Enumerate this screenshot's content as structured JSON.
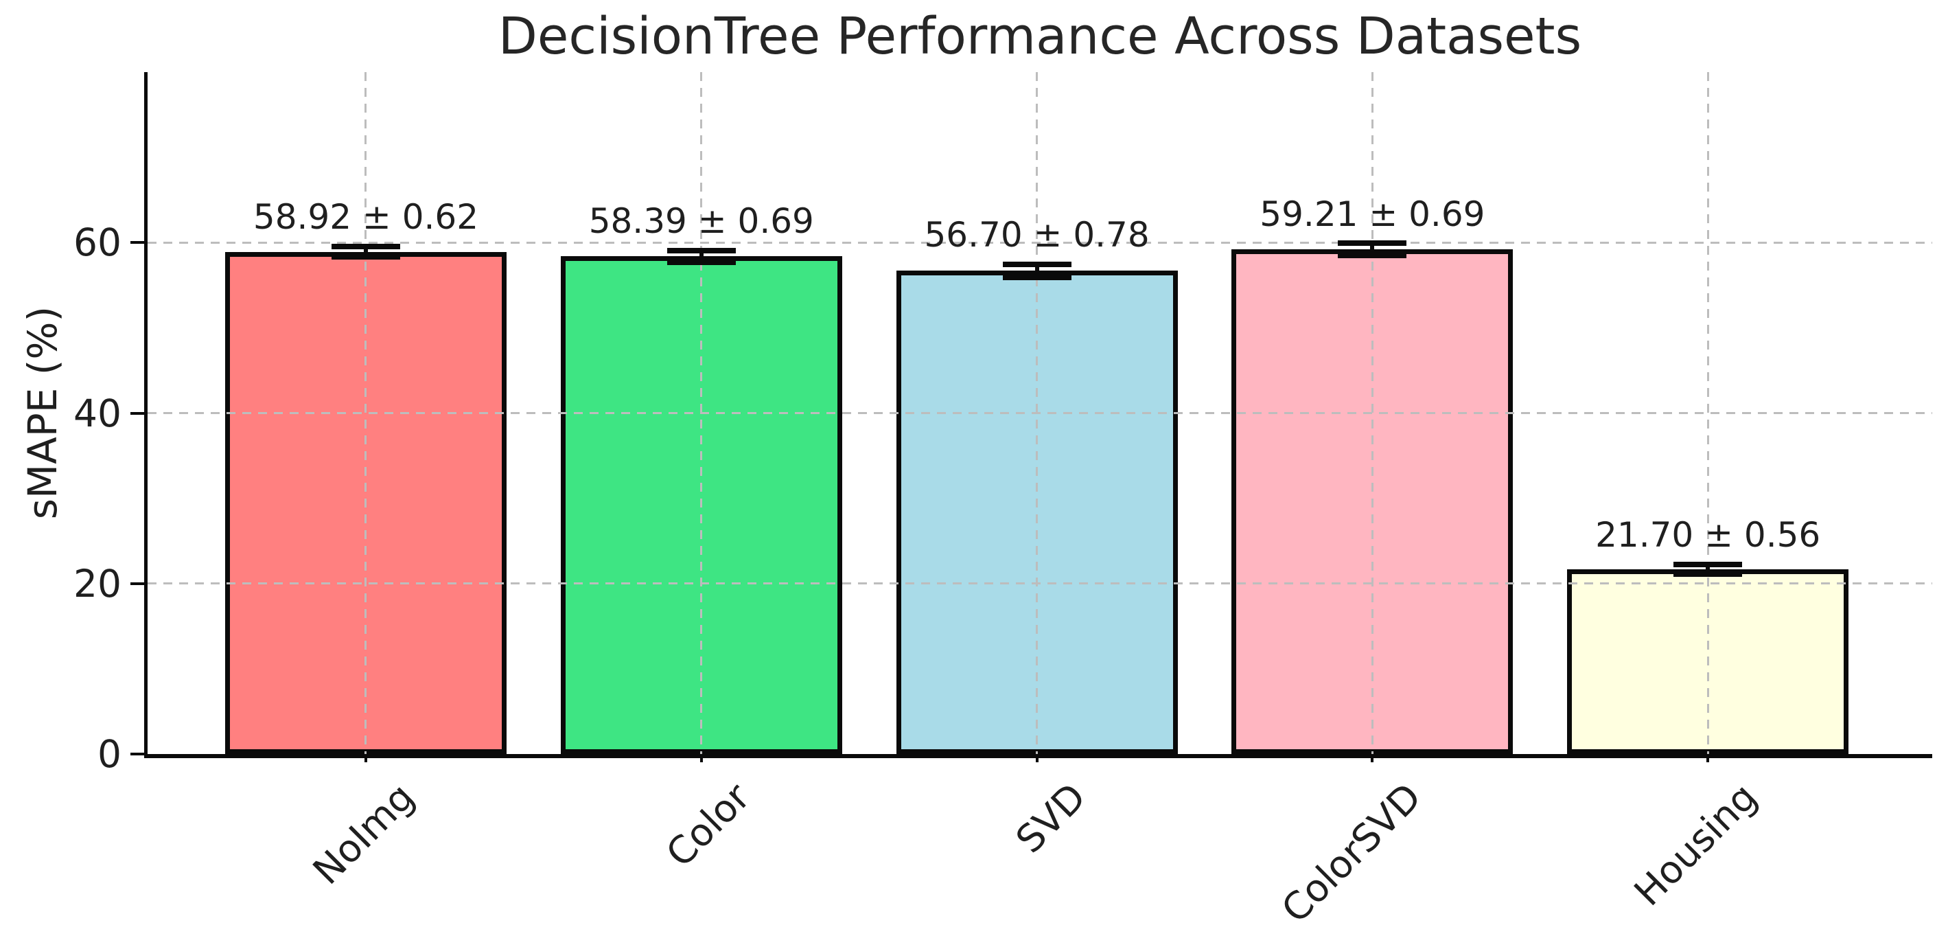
{
  "chart_data": {
    "type": "bar",
    "title": "DecisionTree Performance Across Datasets",
    "ylabel": "sMAPE (%)",
    "xlabel": "",
    "categories": [
      "NoImg",
      "Color",
      "SVD",
      "ColorSVD",
      "Housing"
    ],
    "values": [
      58.92,
      58.39,
      56.7,
      59.21,
      21.7
    ],
    "errors": [
      0.62,
      0.69,
      0.78,
      0.69,
      0.56
    ],
    "value_labels": [
      "58.92 ± 0.62",
      "58.39 ± 0.69",
      "56.70 ± 0.78",
      "59.21 ± 0.69",
      "21.70 ± 0.56"
    ],
    "bar_colors": [
      "#ff8080",
      "#3ee583",
      "#a9dbe8",
      "#ffb6c1",
      "#ffffe0"
    ],
    "bar_edge_color": "#0a0a0a",
    "error_bar_color": "#0a0a0a",
    "grid_color": "#bdbdbd",
    "text_color": "#1f1f1f",
    "yticks": [
      0,
      20,
      40,
      60
    ],
    "ylim": [
      0,
      80
    ],
    "grid": true,
    "grid_style": "dashed",
    "legend_position": "none"
  }
}
